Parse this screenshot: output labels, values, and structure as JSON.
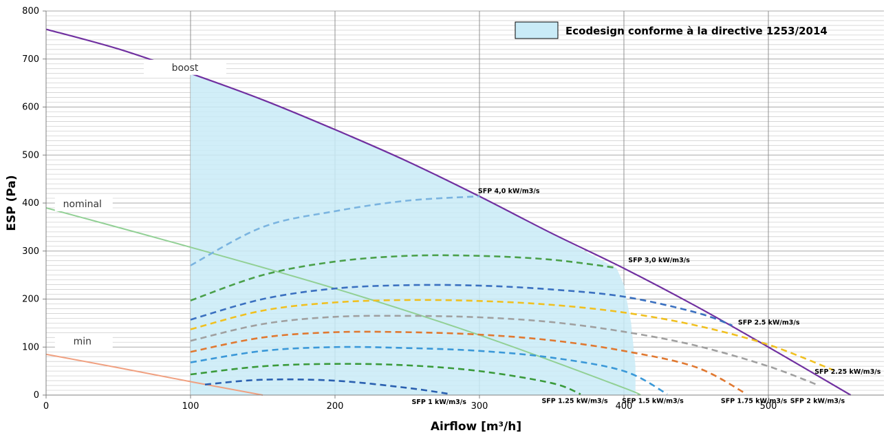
{
  "chart_data": {
    "type": "line",
    "xlabel": "Airflow [m³/h]",
    "ylabel": "ESP (Pa)",
    "xlim": [
      0,
      580
    ],
    "ylim": [
      0,
      800
    ],
    "x_ticks": [
      "0",
      "100",
      "200",
      "300",
      "400",
      "500"
    ],
    "y_ticks": [
      "0",
      "100",
      "200",
      "300",
      "400",
      "500",
      "600",
      "700",
      "800"
    ],
    "grid": "on",
    "legend_position": "top-right",
    "legend_label": "Ecodesign conforme à la directive 1253/2014",
    "colors": {
      "boost": "#7030a0",
      "nominal": "#92d095",
      "min": "#f0a080",
      "area": "#c9ebf7",
      "sfp_4_0": "#7ab4e0",
      "sfp_3_0": "#4aa04a",
      "sfp_2_5": "#3a70c0",
      "sfp_2_25": "#f0c020",
      "sfp_2": "#a0a0a0",
      "sfp_1_75": "#e07830",
      "sfp_1_5": "#3a98d8",
      "sfp_1_25": "#3a9a3a",
      "sfp_1": "#2a60b0"
    },
    "compliance_area": {
      "name": "Ecodesign conforme à la directive 1253/2014",
      "x": [
        100,
        150,
        200,
        250,
        300,
        350,
        395,
        400,
        405,
        408,
        408,
        100
      ],
      "y": [
        670,
        615,
        553,
        487,
        414,
        337,
        264,
        230,
        150,
        60,
        0,
        0
      ]
    },
    "fan_curves": [
      {
        "name": "boost",
        "label": "boost",
        "x": [
          0,
          50,
          100,
          150,
          200,
          250,
          300,
          350,
          400,
          450,
          500,
          557
        ],
        "y": [
          762,
          721,
          670,
          615,
          553,
          487,
          414,
          337,
          264,
          185,
          100,
          0
        ]
      },
      {
        "name": "nominal",
        "label": "nominal",
        "x": [
          0,
          100,
          200,
          300,
          400,
          410
        ],
        "y": [
          390,
          308,
          222,
          125,
          15,
          0
        ]
      },
      {
        "name": "min",
        "label": "min",
        "x": [
          0,
          50,
          100,
          150
        ],
        "y": [
          85,
          57,
          28,
          0
        ]
      }
    ],
    "sfp_curves": [
      {
        "key": "sfp_4_0",
        "label": "SFP 4,0 kW/m3/s",
        "x": [
          100,
          150,
          200,
          250,
          300
        ],
        "y": [
          270,
          350,
          383,
          405,
          414
        ]
      },
      {
        "key": "sfp_3_0",
        "label": "SFP 3,0 kW/m3/s",
        "x": [
          100,
          150,
          200,
          250,
          300,
          350,
          395
        ],
        "y": [
          197,
          250,
          278,
          290,
          290,
          282,
          265
        ]
      },
      {
        "key": "sfp_2_5",
        "label": "SFP 2.5 kW/m3/s",
        "x": [
          100,
          150,
          200,
          250,
          300,
          350,
          400,
          450,
          475
        ],
        "y": [
          157,
          200,
          222,
          229,
          228,
          220,
          205,
          172,
          145
        ]
      },
      {
        "key": "sfp_2_25",
        "label": "SFP 2.25 kW/m3/s",
        "x": [
          100,
          150,
          200,
          250,
          300,
          350,
          400,
          450,
          500,
          545
        ],
        "y": [
          137,
          176,
          193,
          198,
          196,
          188,
          172,
          145,
          105,
          52
        ]
      },
      {
        "key": "sfp_2",
        "label": "SFP 2 kW/m3/s",
        "x": [
          100,
          150,
          200,
          250,
          300,
          350,
          400,
          450,
          500,
          535
        ],
        "y": [
          113,
          148,
          163,
          165,
          162,
          152,
          132,
          103,
          60,
          20
        ]
      },
      {
        "key": "sfp_1_75",
        "label": "SFP 1.75 kW/m3/s",
        "x": [
          100,
          150,
          200,
          250,
          300,
          350,
          400,
          450,
          485
        ],
        "y": [
          90,
          120,
          131,
          131,
          126,
          114,
          92,
          58,
          2
        ]
      },
      {
        "key": "sfp_1_5",
        "label": "SFP 1.5 kW/m3/s",
        "x": [
          100,
          150,
          200,
          250,
          300,
          350,
          400,
          430
        ],
        "y": [
          68,
          92,
          100,
          98,
          92,
          78,
          50,
          2
        ]
      },
      {
        "key": "sfp_1_25",
        "label": "SFP 1.25 kW/m3/s",
        "x": [
          100,
          150,
          200,
          250,
          300,
          350,
          370
        ],
        "y": [
          43,
          60,
          65,
          62,
          50,
          25,
          2
        ]
      },
      {
        "key": "sfp_1",
        "label": "SFP 1 kW/m3/s",
        "x": [
          110,
          150,
          200,
          250,
          280
        ],
        "y": [
          22,
          32,
          30,
          15,
          2
        ]
      }
    ]
  }
}
